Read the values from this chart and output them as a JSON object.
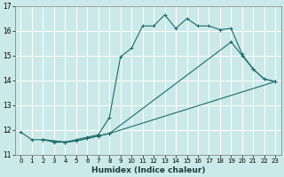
{
  "title": "",
  "xlabel": "Humidex (Indice chaleur)",
  "ylabel": "",
  "background_color": "#cce9e9",
  "grid_color": "#ffffff",
  "line_color": "#1a6b6b",
  "xlim": [
    -0.5,
    23.5
  ],
  "ylim": [
    11,
    17
  ],
  "yticks": [
    11,
    12,
    13,
    14,
    15,
    16,
    17
  ],
  "xticks": [
    0,
    1,
    2,
    3,
    4,
    5,
    6,
    7,
    8,
    9,
    10,
    11,
    12,
    13,
    14,
    15,
    16,
    17,
    18,
    19,
    20,
    21,
    22,
    23
  ],
  "line1_x": [
    0,
    1,
    2,
    3,
    4,
    5,
    6,
    7,
    8,
    9,
    10,
    11,
    12,
    13,
    14,
    15,
    16,
    17,
    18,
    19,
    20,
    21,
    22,
    23
  ],
  "line1_y": [
    11.9,
    11.6,
    11.6,
    11.5,
    11.5,
    11.6,
    11.7,
    11.8,
    12.5,
    14.95,
    15.3,
    16.2,
    16.2,
    16.65,
    16.1,
    16.5,
    16.2,
    16.2,
    16.05,
    16.1,
    15.05,
    14.45,
    14.05,
    13.95
  ],
  "line2_x": [
    2,
    4,
    5,
    6,
    7,
    8,
    23
  ],
  "line2_y": [
    11.6,
    11.5,
    11.55,
    11.65,
    11.75,
    11.85,
    13.95
  ],
  "line3_x": [
    2,
    4,
    5,
    6,
    7,
    8,
    19,
    20,
    21,
    22,
    23
  ],
  "line3_y": [
    11.6,
    11.5,
    11.55,
    11.65,
    11.75,
    11.85,
    15.55,
    15.0,
    14.45,
    14.05,
    13.95
  ]
}
